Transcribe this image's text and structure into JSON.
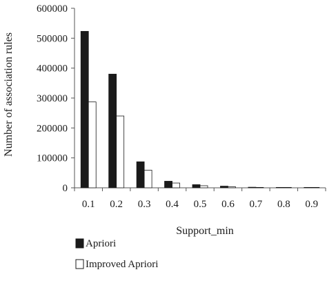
{
  "chart_data": {
    "type": "bar",
    "xlabel": "Support_min",
    "ylabel": "Number of association rules",
    "ylim": [
      0,
      600000
    ],
    "yticks": [
      0,
      100000,
      200000,
      300000,
      400000,
      500000,
      600000
    ],
    "ytick_labels": [
      "0",
      "100000",
      "200000",
      "300000",
      "400000",
      "500000",
      "600000"
    ],
    "categories": [
      "0.1",
      "0.2",
      "0.3",
      "0.4",
      "0.5",
      "0.6",
      "0.7",
      "0.8",
      "0.9"
    ],
    "series": [
      {
        "name": "Apriori",
        "color": "#1a1a1a",
        "values": [
          523000,
          380000,
          87000,
          22000,
          10500,
          5500,
          2000,
          1000,
          500
        ]
      },
      {
        "name": "Improved Apriori",
        "color": "#ffffff",
        "values": [
          287000,
          240000,
          59000,
          16000,
          7000,
          3500,
          1000,
          500,
          300
        ]
      }
    ],
    "legend_position": "bottom-left",
    "grid": false
  }
}
